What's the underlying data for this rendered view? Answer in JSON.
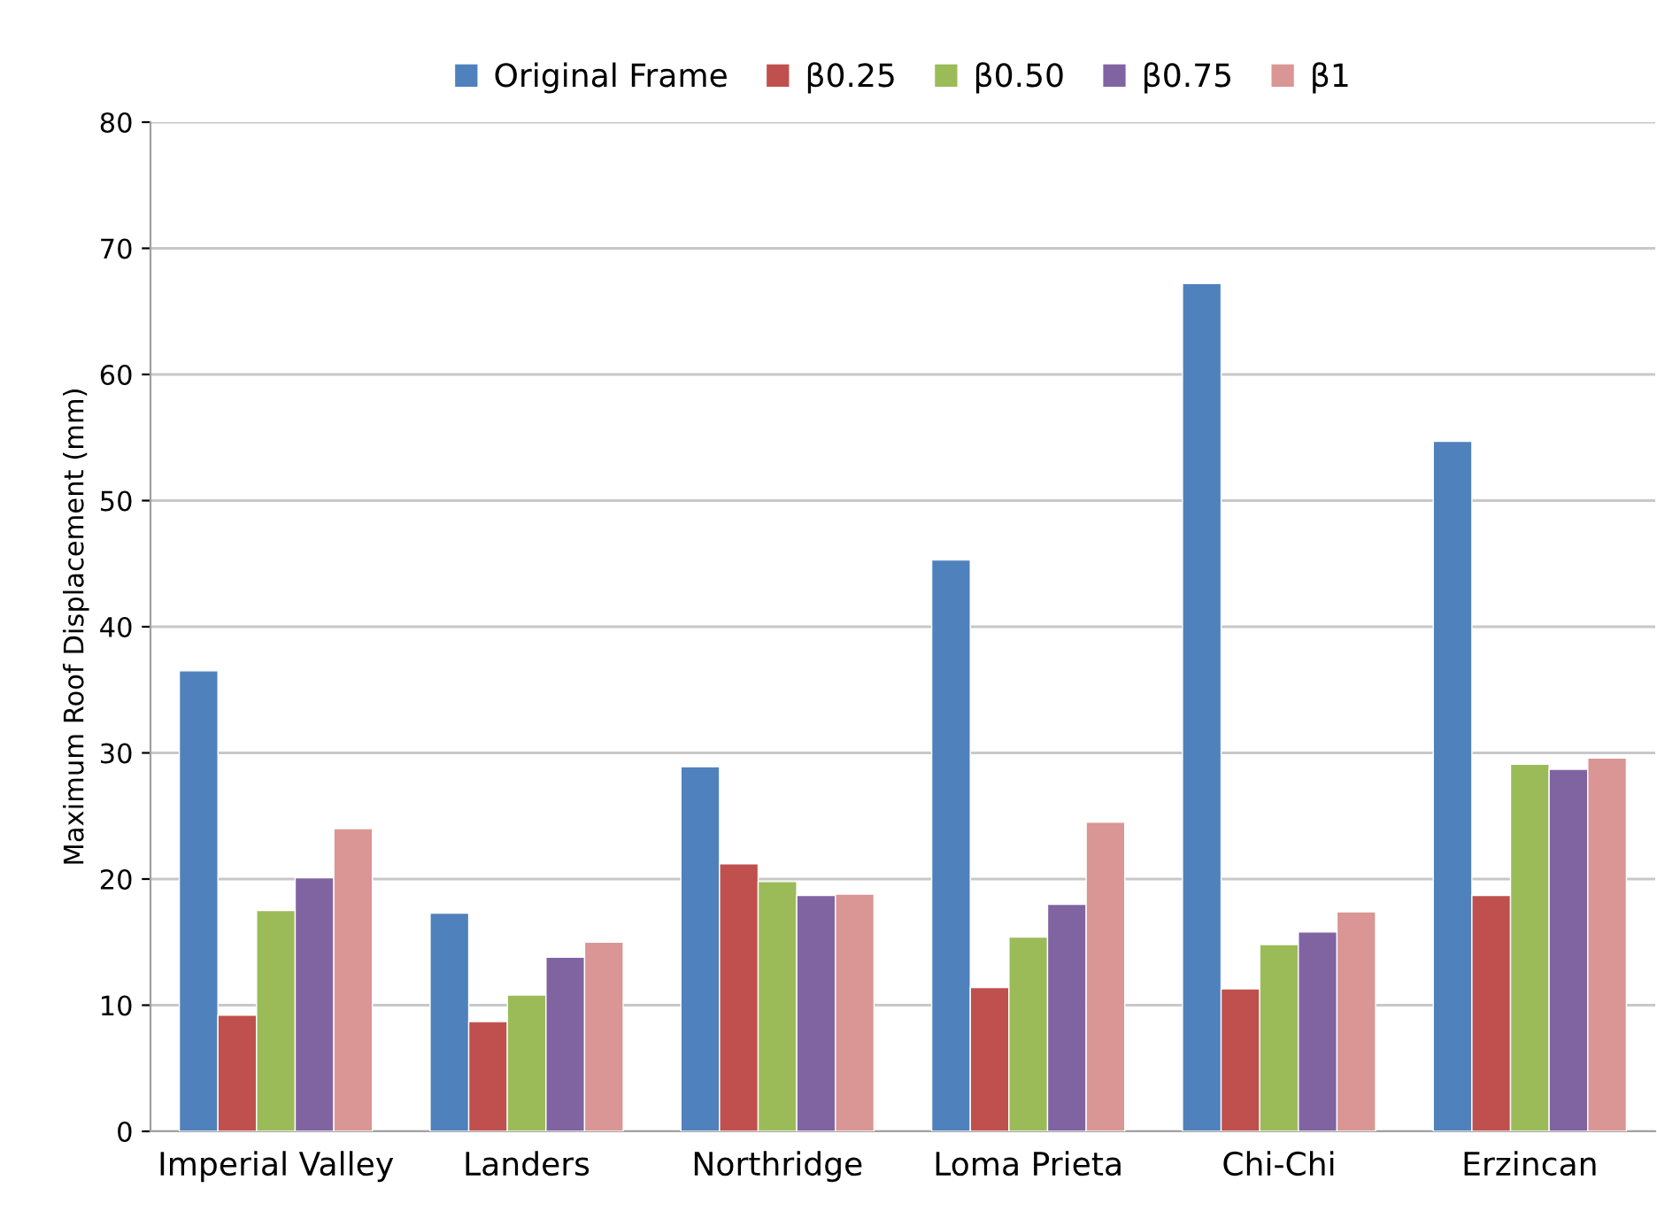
{
  "chart_data": {
    "type": "bar",
    "ylabel": "Maximum Roof Displacement (mm)",
    "categories": [
      "Imperial Valley",
      "Landers",
      "Northridge",
      "Loma Prieta",
      "Chi-Chi",
      "Erzincan"
    ],
    "series": [
      {
        "name": "Original Frame",
        "color": "#4f81bd",
        "values": [
          36.5,
          17.3,
          28.9,
          45.3,
          67.2,
          54.7
        ]
      },
      {
        "name": "β0.25",
        "color": "#c0504d",
        "values": [
          9.2,
          8.7,
          21.2,
          11.4,
          11.3,
          18.7
        ]
      },
      {
        "name": "β0.50",
        "color": "#9bbb59",
        "values": [
          17.5,
          10.8,
          19.8,
          15.4,
          14.8,
          29.1
        ]
      },
      {
        "name": "β0.75",
        "color": "#8064a2",
        "values": [
          20.1,
          13.8,
          18.7,
          18.0,
          15.8,
          28.7
        ]
      },
      {
        "name": "β1",
        "color": "#d99694",
        "values": [
          24.0,
          15.0,
          18.8,
          24.5,
          17.4,
          29.6
        ]
      }
    ],
    "ylim": [
      0,
      80
    ],
    "yticks": [
      0,
      10,
      20,
      30,
      40,
      50,
      60,
      70,
      80
    ],
    "grid": "y",
    "legend": "top"
  }
}
